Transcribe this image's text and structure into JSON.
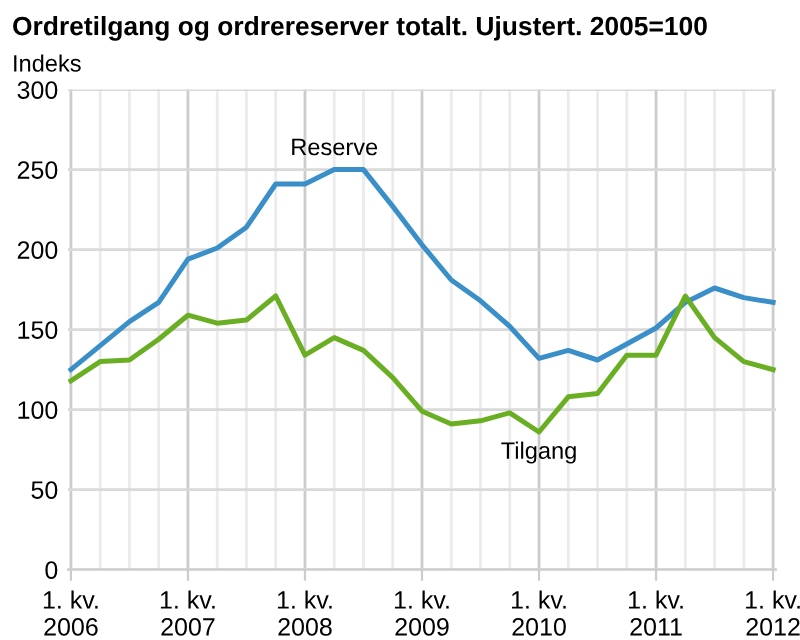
{
  "chart_data": {
    "type": "line",
    "title": "Ordretilgang og ordrereserver totalt. Ujustert. 2005=100",
    "ylabel": "Indeks",
    "categories": [
      "1. kv.\n2006",
      null,
      null,
      null,
      "1. kv.\n2007",
      null,
      null,
      null,
      "1. kv.\n2008",
      null,
      null,
      null,
      "1. kv.\n2009",
      null,
      null,
      null,
      "1. kv.\n2010",
      null,
      null,
      null,
      "1. kv.\n2011",
      null,
      null,
      null,
      "1. kv.\n2012"
    ],
    "series": [
      {
        "name": "Reserve",
        "color": "#3a8fc8",
        "values": [
          125,
          140,
          155,
          167,
          194,
          201,
          214,
          241,
          241,
          250,
          250,
          227,
          203,
          181,
          168,
          152,
          132,
          137,
          131,
          141,
          151,
          167,
          176,
          170,
          167
        ]
      },
      {
        "name": "Tilgang",
        "color": "#6aaf23",
        "values": [
          118,
          130,
          131,
          144,
          159,
          154,
          156,
          171,
          134,
          145,
          137,
          120,
          99,
          91,
          93,
          98,
          86,
          108,
          110,
          134,
          134,
          171,
          145,
          130,
          125
        ]
      }
    ],
    "ylim": [
      0,
      300
    ],
    "yticks": [
      0,
      50,
      100,
      150,
      200,
      250,
      300
    ],
    "grid": true,
    "legend": false,
    "marker": "none",
    "line_style": "solid"
  }
}
